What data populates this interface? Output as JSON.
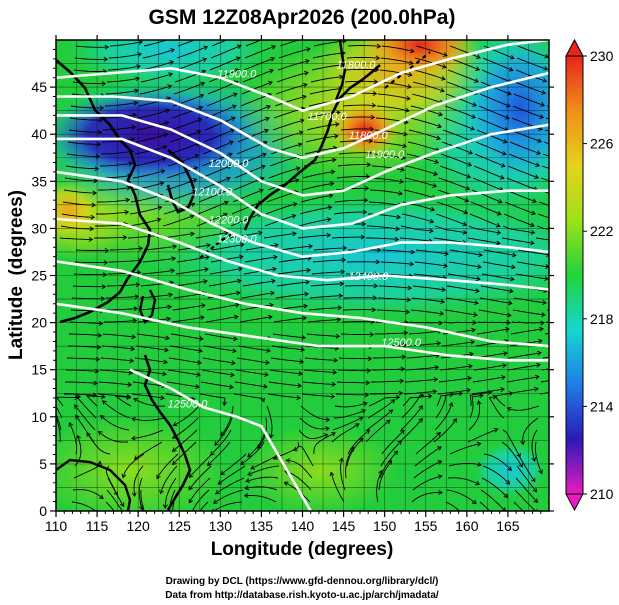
{
  "chart_data": {
    "type": "heatmap",
    "title": "GSM 12Z08Apr2026 (200.0hPa)",
    "xlabel": "Longitude (degrees)",
    "ylabel": "Latitude  (degrees)",
    "xlim": [
      110,
      170
    ],
    "ylim": [
      0,
      50
    ],
    "x_ticks": [
      "110",
      "115",
      "120",
      "125",
      "130",
      "135",
      "140",
      "145",
      "150",
      "155",
      "160",
      "165"
    ],
    "y_ticks": [
      "0",
      "5",
      "10",
      "15",
      "20",
      "25",
      "30",
      "35",
      "40",
      "45"
    ],
    "colorbar": {
      "min": 210,
      "max": 230,
      "ticks": [
        "210",
        "214",
        "218",
        "222",
        "226",
        "230"
      ],
      "colors": [
        "#e81cc0",
        "#2a1ab8",
        "#1f7de6",
        "#18d6d0",
        "#22d33a",
        "#9fe01a",
        "#e6d21a",
        "#f08f1a",
        "#e8251a"
      ]
    },
    "contours": [
      {
        "label": "11900.0",
        "lon": 132,
        "lat": 46
      },
      {
        "label": "11800.0",
        "lon": 146.5,
        "lat": 47
      },
      {
        "label": "11700.0",
        "lon": 143,
        "lat": 41.5
      },
      {
        "label": "11800.0",
        "lon": 148,
        "lat": 39.5
      },
      {
        "label": "11900.0",
        "lon": 150,
        "lat": 37.5
      },
      {
        "label": "12000.0",
        "lon": 131,
        "lat": 36.5
      },
      {
        "label": "12100.0",
        "lon": 129,
        "lat": 33.5
      },
      {
        "label": "12200.0",
        "lon": 131,
        "lat": 30.5
      },
      {
        "label": "12300.0",
        "lon": 132,
        "lat": 28.5
      },
      {
        "label": "12400.0",
        "lon": 148,
        "lat": 24.5
      },
      {
        "label": "12500.0",
        "lon": 152,
        "lat": 17.5
      },
      {
        "label": "12500.0",
        "lon": 126,
        "lat": 11
      }
    ],
    "contour_lines": [
      [
        [
          110,
          46
        ],
        [
          117,
          46.5
        ],
        [
          124,
          47
        ],
        [
          130,
          46
        ],
        [
          136,
          44
        ],
        [
          140,
          42.5
        ],
        [
          146,
          44
        ],
        [
          152,
          46.5
        ],
        [
          158,
          48
        ],
        [
          165,
          49.5
        ],
        [
          170,
          50
        ]
      ],
      [
        [
          110,
          44
        ],
        [
          117,
          44
        ],
        [
          124,
          43.5
        ],
        [
          130,
          41.5
        ],
        [
          136,
          38.5
        ],
        [
          140,
          37.5
        ],
        [
          145,
          38.5
        ],
        [
          150,
          40.5
        ],
        [
          156,
          43
        ],
        [
          163,
          45
        ],
        [
          170,
          46.5
        ]
      ],
      [
        [
          110,
          42
        ],
        [
          118,
          42
        ],
        [
          124,
          40.5
        ],
        [
          130,
          38
        ],
        [
          135,
          35
        ],
        [
          140,
          33.5
        ],
        [
          145,
          34
        ],
        [
          150,
          36
        ],
        [
          156,
          38
        ],
        [
          163,
          40
        ],
        [
          170,
          41
        ]
      ],
      [
        [
          110,
          39.5
        ],
        [
          118,
          39.5
        ],
        [
          124,
          37.5
        ],
        [
          130,
          34.5
        ],
        [
          135,
          31.5
        ],
        [
          140,
          30
        ],
        [
          146,
          30.5
        ],
        [
          152,
          32.5
        ],
        [
          158,
          33.5
        ],
        [
          165,
          34
        ],
        [
          170,
          34
        ]
      ],
      [
        [
          110,
          36
        ],
        [
          118,
          35
        ],
        [
          124,
          33
        ],
        [
          129,
          30.5
        ],
        [
          134,
          28.5
        ],
        [
          140,
          27
        ],
        [
          146,
          27.5
        ],
        [
          152,
          28.5
        ],
        [
          158,
          28.5
        ],
        [
          165,
          28
        ],
        [
          170,
          27.5
        ]
      ],
      [
        [
          110,
          31
        ],
        [
          118,
          30.5
        ],
        [
          125,
          28.5
        ],
        [
          131,
          26.5
        ],
        [
          137,
          25
        ],
        [
          143,
          24.5
        ],
        [
          150,
          25
        ],
        [
          158,
          24.5
        ],
        [
          165,
          24
        ],
        [
          170,
          23.5
        ]
      ],
      [
        [
          110,
          26.5
        ],
        [
          118,
          25.5
        ],
        [
          126,
          23.5
        ],
        [
          133,
          22
        ],
        [
          140,
          21
        ],
        [
          147,
          20.5
        ],
        [
          155,
          19.5
        ],
        [
          163,
          18
        ],
        [
          170,
          17.5
        ]
      ],
      [
        [
          110,
          22
        ],
        [
          118,
          21
        ],
        [
          126,
          19.5
        ],
        [
          134,
          18.5
        ],
        [
          142,
          17.5
        ],
        [
          150,
          17.5
        ],
        [
          158,
          16.5
        ],
        [
          165,
          16
        ],
        [
          170,
          16
        ]
      ],
      [
        [
          119,
          15
        ],
        [
          124,
          13
        ],
        [
          128,
          11
        ],
        [
          132,
          10
        ],
        [
          135,
          9
        ],
        [
          137,
          6
        ],
        [
          139,
          3
        ],
        [
          141,
          0
        ]
      ]
    ]
  }
}
